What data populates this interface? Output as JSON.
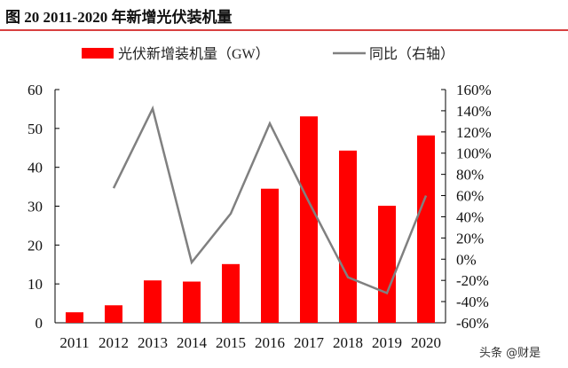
{
  "title": "图 20 2011-2020 年新增光伏装机量",
  "watermark": "头条 @财是",
  "colors": {
    "bar": "#ff0000",
    "line": "#808080",
    "title_rule": "#cc0000"
  },
  "chart_data": {
    "type": "bar+line",
    "categories": [
      "2011",
      "2012",
      "2013",
      "2014",
      "2015",
      "2016",
      "2017",
      "2018",
      "2019",
      "2020"
    ],
    "series": [
      {
        "name": "光伏新增装机量（GW）",
        "type": "bar",
        "axis": "left",
        "values": [
          2.7,
          4.5,
          10.9,
          10.6,
          15.1,
          34.5,
          53.1,
          44.3,
          30.1,
          48.2
        ]
      },
      {
        "name": "同比（右轴）",
        "type": "line",
        "axis": "right",
        "values": [
          null,
          67,
          142,
          -3,
          43,
          128,
          54,
          -17,
          -32,
          60
        ]
      }
    ],
    "left_axis": {
      "min": 0,
      "max": 60,
      "ticks": [
        "0",
        "10",
        "20",
        "30",
        "40",
        "50",
        "60"
      ]
    },
    "right_axis": {
      "min": -60,
      "max": 160,
      "ticks": [
        "-60%",
        "-40%",
        "-20%",
        "0%",
        "20%",
        "40%",
        "60%",
        "80%",
        "100%",
        "120%",
        "140%",
        "160%"
      ]
    },
    "legend_position": "top",
    "grid": false
  }
}
